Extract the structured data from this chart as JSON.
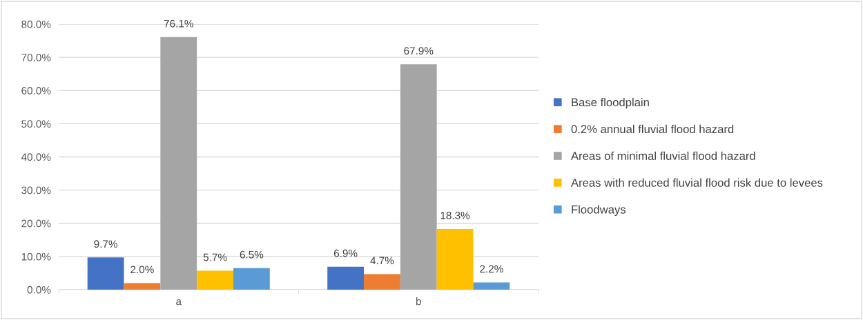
{
  "chart_data": {
    "type": "bar",
    "categories": [
      "a",
      "b"
    ],
    "series": [
      {
        "name": "Base floodplain",
        "color": "#4472c4",
        "values": [
          9.7,
          6.9
        ],
        "value_labels": [
          "9.7%",
          "6.9%"
        ]
      },
      {
        "name": "0.2% annual fluvial flood hazard",
        "color": "#ed7d31",
        "values": [
          2.0,
          4.7
        ],
        "value_labels": [
          "2.0%",
          "4.7%"
        ]
      },
      {
        "name": "Areas of minimal fluvial flood hazard",
        "color": "#a5a5a5",
        "values": [
          76.1,
          67.9
        ],
        "value_labels": [
          "76.1%",
          "67.9%"
        ]
      },
      {
        "name": "Areas with reduced fluvial flood risk due to levees",
        "color": "#ffc000",
        "values": [
          5.7,
          18.3
        ],
        "value_labels": [
          "5.7%",
          "18.3%"
        ]
      },
      {
        "name": "Floodways",
        "color": "#5b9bd5",
        "values": [
          6.5,
          2.2
        ],
        "value_labels": [
          "6.5%",
          "2.2%"
        ]
      }
    ],
    "ylim": [
      0,
      80
    ],
    "yticks": [
      {
        "value": 0,
        "label": "0.0%"
      },
      {
        "value": 10,
        "label": "10.0%"
      },
      {
        "value": 20,
        "label": "20.0%"
      },
      {
        "value": 30,
        "label": "30.0%"
      },
      {
        "value": 40,
        "label": "40.0%"
      },
      {
        "value": 50,
        "label": "50.0%"
      },
      {
        "value": 60,
        "label": "60.0%"
      },
      {
        "value": 70,
        "label": "70.0%"
      },
      {
        "value": 80,
        "label": "80.0%"
      }
    ],
    "grid": "y",
    "legend": "right"
  }
}
